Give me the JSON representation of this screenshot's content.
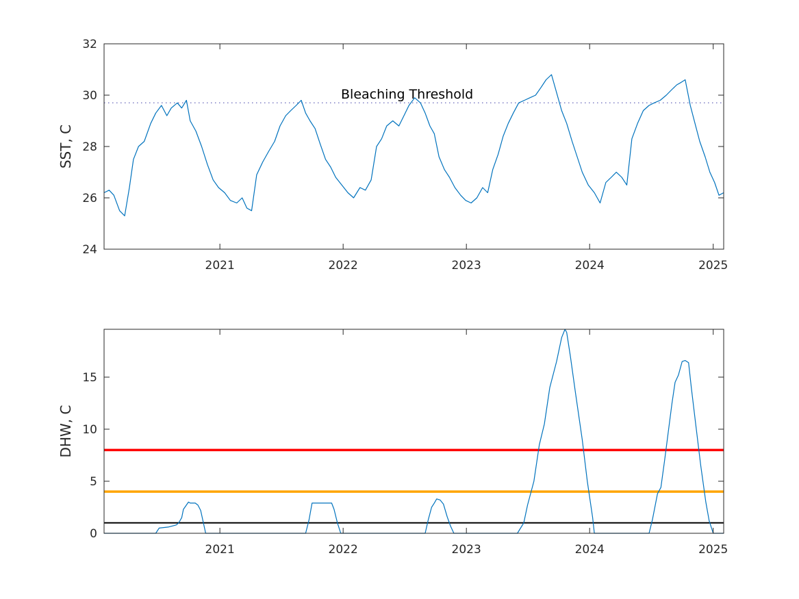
{
  "chart_data": [
    {
      "type": "line",
      "ylabel": "SST, C",
      "xlabel": "",
      "title": "",
      "xlim": [
        "2020-01-24",
        "2025-02-01"
      ],
      "ylim": [
        24,
        32
      ],
      "yticks": [
        24,
        26,
        28,
        30,
        32
      ],
      "xticks": [
        "2021",
        "2022",
        "2023",
        "2024",
        "2025"
      ],
      "grid": false,
      "annotations": [
        {
          "text": "Bleaching Threshold",
          "x": "2022-01-01",
          "y": 30.1
        }
      ],
      "reference_lines": [
        {
          "y": 29.7,
          "style": "dotted",
          "color": "#7e7ec4"
        }
      ],
      "series": [
        {
          "color": "#0072bd",
          "x": [
            "2020-01-24",
            "2020-02-08",
            "2020-02-22",
            "2020-03-10",
            "2020-03-25",
            "2020-04-08",
            "2020-04-20",
            "2020-05-05",
            "2020-05-22",
            "2020-06-10",
            "2020-06-25",
            "2020-07-12",
            "2020-07-28",
            "2020-08-10",
            "2020-08-28",
            "2020-09-10",
            "2020-09-24",
            "2020-10-05",
            "2020-10-22",
            "2020-11-08",
            "2020-11-25",
            "2020-12-12",
            "2020-12-28",
            "2021-01-15",
            "2021-02-01",
            "2021-02-20",
            "2021-03-08",
            "2021-03-22",
            "2021-04-05",
            "2021-04-20",
            "2021-05-08",
            "2021-05-25",
            "2021-06-12",
            "2021-06-28",
            "2021-07-15",
            "2021-07-30",
            "2021-08-15",
            "2021-08-30",
            "2021-09-12",
            "2021-09-25",
            "2021-10-10",
            "2021-10-25",
            "2021-11-10",
            "2021-11-25",
            "2021-12-10",
            "2021-12-28",
            "2022-01-15",
            "2022-02-01",
            "2022-02-20",
            "2022-03-08",
            "2022-03-25",
            "2022-04-10",
            "2022-04-25",
            "2022-05-10",
            "2022-05-28",
            "2022-06-15",
            "2022-06-30",
            "2022-07-15",
            "2022-08-01",
            "2022-08-18",
            "2022-09-01",
            "2022-09-15",
            "2022-09-28",
            "2022-10-12",
            "2022-10-28",
            "2022-11-12",
            "2022-11-28",
            "2022-12-15",
            "2022-12-30",
            "2023-01-15",
            "2023-02-01",
            "2023-02-18",
            "2023-03-05",
            "2023-03-20",
            "2023-04-05",
            "2023-04-20",
            "2023-05-05",
            "2023-05-20",
            "2023-06-05",
            "2023-06-22",
            "2023-07-08",
            "2023-07-25",
            "2023-08-10",
            "2023-08-25",
            "2023-09-10",
            "2023-09-25",
            "2023-10-10",
            "2023-10-25",
            "2023-11-10",
            "2023-11-25",
            "2023-12-10",
            "2023-12-28",
            "2024-01-15",
            "2024-02-01",
            "2024-02-18",
            "2024-03-05",
            "2024-03-20",
            "2024-04-05",
            "2024-04-20",
            "2024-05-05",
            "2024-05-22",
            "2024-06-08",
            "2024-06-25",
            "2024-07-10",
            "2024-07-28",
            "2024-08-15",
            "2024-08-30",
            "2024-09-15",
            "2024-09-28",
            "2024-10-10",
            "2024-10-25",
            "2024-11-08",
            "2024-11-22",
            "2024-12-08",
            "2024-12-22",
            "2025-01-05",
            "2025-01-18",
            "2025-02-01"
          ],
          "y": [
            26.2,
            26.3,
            26.1,
            25.5,
            25.3,
            26.4,
            27.5,
            28.0,
            28.2,
            28.9,
            29.3,
            29.6,
            29.2,
            29.5,
            29.7,
            29.5,
            29.8,
            29.0,
            28.6,
            28.0,
            27.3,
            26.7,
            26.4,
            26.2,
            25.9,
            25.8,
            26.0,
            25.6,
            25.5,
            26.9,
            27.4,
            27.8,
            28.2,
            28.8,
            29.2,
            29.4,
            29.6,
            29.8,
            29.3,
            29.0,
            28.7,
            28.1,
            27.5,
            27.2,
            26.8,
            26.5,
            26.2,
            26.0,
            26.4,
            26.3,
            26.7,
            28.0,
            28.3,
            28.8,
            29.0,
            28.8,
            29.2,
            29.6,
            29.9,
            29.7,
            29.3,
            28.8,
            28.5,
            27.6,
            27.1,
            26.8,
            26.4,
            26.1,
            25.9,
            25.8,
            26.0,
            26.4,
            26.2,
            27.1,
            27.7,
            28.4,
            28.9,
            29.3,
            29.7,
            29.8,
            29.9,
            30.0,
            30.3,
            30.6,
            30.8,
            30.1,
            29.4,
            28.9,
            28.2,
            27.6,
            27.0,
            26.5,
            26.2,
            25.8,
            26.6,
            26.8,
            27.0,
            26.8,
            26.5,
            28.3,
            28.9,
            29.4,
            29.6,
            29.7,
            29.8,
            30.0,
            30.2,
            30.4,
            30.5,
            30.6,
            29.6,
            28.9,
            28.2,
            27.6,
            27.0,
            26.6,
            26.1,
            26.2
          ]
        }
      ]
    },
    {
      "type": "line",
      "ylabel": "DHW, C",
      "xlabel": "",
      "title": "",
      "xlim": [
        "2020-01-24",
        "2025-02-01"
      ],
      "ylim": [
        0,
        19.6
      ],
      "yticks": [
        0,
        5,
        10,
        15
      ],
      "xticks": [
        "2021",
        "2022",
        "2023",
        "2024",
        "2025"
      ],
      "grid": false,
      "reference_lines": [
        {
          "y": 1,
          "color": "#000000",
          "style": "solid"
        },
        {
          "y": 4,
          "color": "#ffa500",
          "style": "solid"
        },
        {
          "y": 8,
          "color": "#ff0000",
          "style": "solid"
        }
      ],
      "series": [
        {
          "color": "#0072bd",
          "x": [
            "2020-01-24",
            "2020-06-25",
            "2020-07-05",
            "2020-08-01",
            "2020-08-25",
            "2020-09-01",
            "2020-09-10",
            "2020-09-15",
            "2020-09-30",
            "2020-10-05",
            "2020-10-20",
            "2020-10-28",
            "2020-11-05",
            "2020-11-20",
            "2021-09-12",
            "2021-09-22",
            "2021-10-01",
            "2021-10-12",
            "2021-11-28",
            "2021-12-05",
            "2021-12-15",
            "2021-12-25",
            "2022-09-01",
            "2022-09-10",
            "2022-09-20",
            "2022-09-28",
            "2022-10-05",
            "2022-10-15",
            "2022-10-25",
            "2022-11-05",
            "2022-11-15",
            "2022-11-25",
            "2022-12-01",
            "2023-06-01",
            "2023-06-20",
            "2023-07-01",
            "2023-07-20",
            "2023-08-05",
            "2023-08-20",
            "2023-09-05",
            "2023-09-25",
            "2023-10-10",
            "2023-10-20",
            "2023-10-25",
            "2023-11-05",
            "2023-11-20",
            "2023-12-10",
            "2023-12-25",
            "2024-01-10",
            "2024-01-15",
            "2024-02-01",
            "2024-06-25",
            "2024-07-05",
            "2024-07-20",
            "2024-07-30",
            "2024-08-10",
            "2024-08-20",
            "2024-09-01",
            "2024-09-10",
            "2024-09-20",
            "2024-10-01",
            "2024-10-10",
            "2024-10-20",
            "2024-10-28",
            "2024-11-10",
            "2024-11-25",
            "2024-12-10",
            "2024-12-20",
            "2025-01-01",
            "2025-01-12",
            "2025-01-22",
            "2025-02-01"
          ],
          "y": [
            0,
            0,
            0.5,
            0.6,
            0.8,
            1.0,
            1.5,
            2.3,
            3.0,
            2.9,
            2.9,
            2.7,
            2.2,
            0,
            0,
            1.3,
            2.9,
            2.9,
            2.9,
            2.3,
            1.0,
            0,
            0,
            1.3,
            2.5,
            2.9,
            3.3,
            3.2,
            2.8,
            1.6,
            0.7,
            0,
            0,
            0,
            1.0,
            2.7,
            5.0,
            8.5,
            10.5,
            14.0,
            16.5,
            18.8,
            19.6,
            19.3,
            17.0,
            13.5,
            9.0,
            5.0,
            1.5,
            0,
            0,
            0,
            1.3,
            3.8,
            4.4,
            7.0,
            9.5,
            12.5,
            14.5,
            15.2,
            16.5,
            16.6,
            16.4,
            14.0,
            10.5,
            6.5,
            3.0,
            1.2,
            0,
            0,
            0,
            0
          ]
        }
      ]
    }
  ]
}
